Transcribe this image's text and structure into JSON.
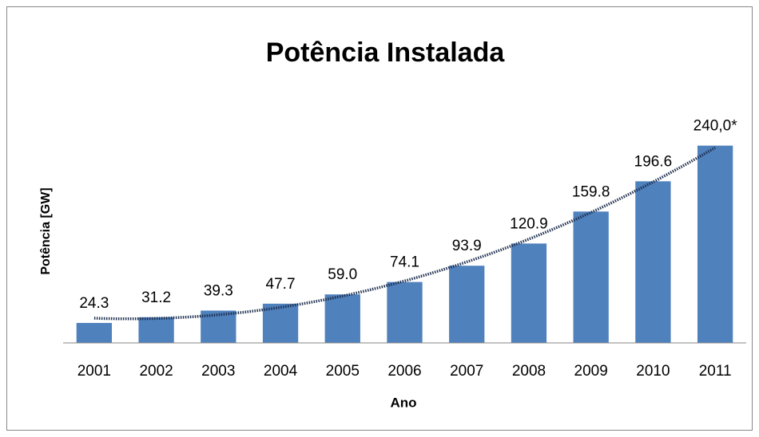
{
  "chart_data": {
    "type": "bar",
    "title": "Potência Instalada",
    "y_label": "Potência [GW]",
    "x_label": "Ano",
    "categories": [
      "2001",
      "2002",
      "2003",
      "2004",
      "2005",
      "2006",
      "2007",
      "2008",
      "2009",
      "2010",
      "2011"
    ],
    "values": [
      24.3,
      31.2,
      39.3,
      47.7,
      59.0,
      74.1,
      93.9,
      120.9,
      159.8,
      196.6,
      240.0
    ],
    "value_labels": [
      "24.3",
      "31.2",
      "39.3",
      "47.7",
      "59.0",
      "74.1",
      "93.9",
      "120.9",
      "159.8",
      "196.6",
      "240,0*"
    ],
    "color": "#4f81bd",
    "ylim": [
      0,
      260
    ],
    "trendline": true
  }
}
